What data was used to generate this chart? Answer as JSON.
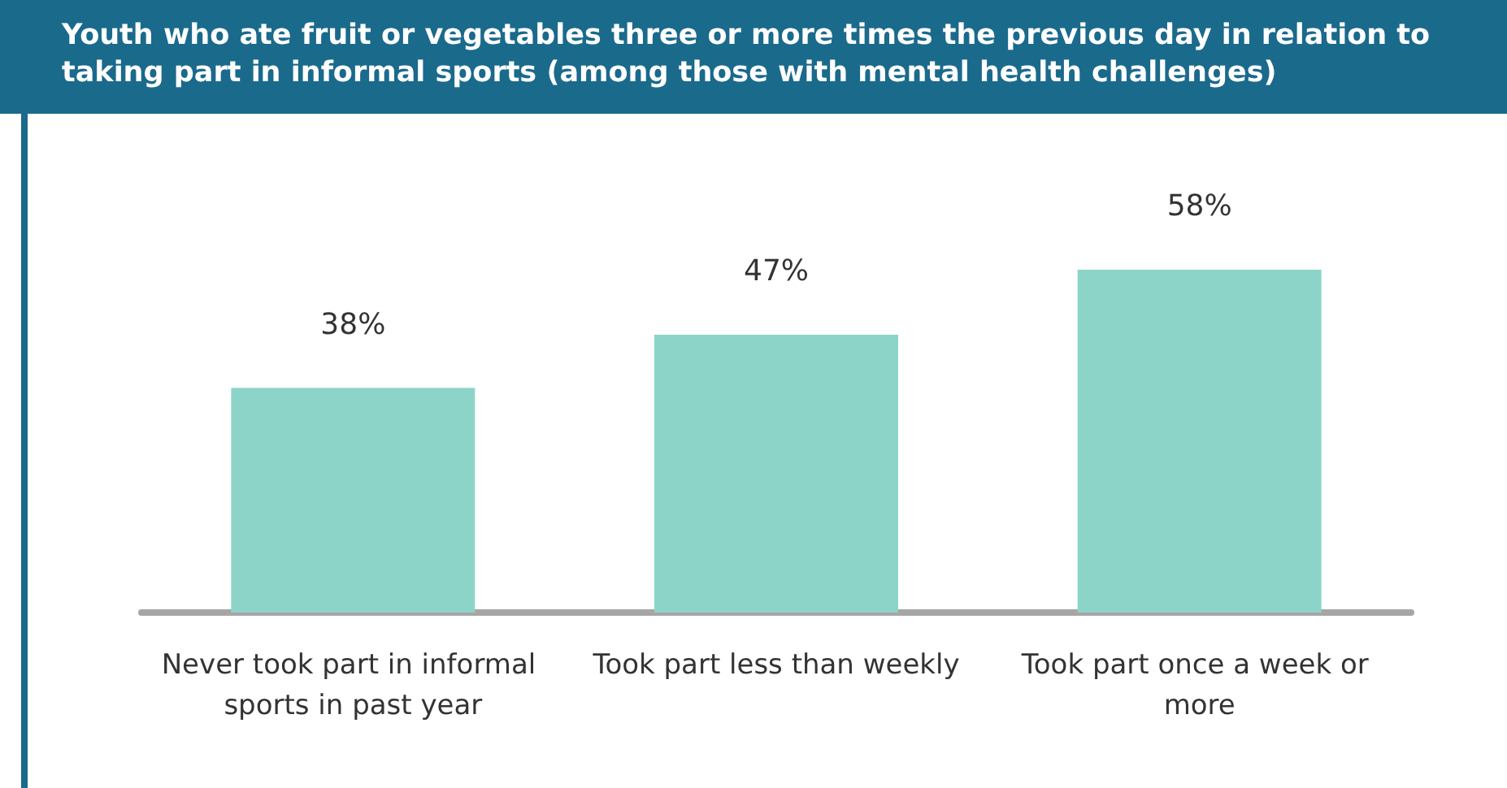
{
  "chart_data": {
    "type": "bar",
    "title": "Youth who ate fruit or vegetables three or more times the previous day in relation to taking part in informal sports (among those with mental health challenges)",
    "categories": [
      "Never took part in informal sports in past year",
      "Took part less than weekly",
      "Took part once a week or more"
    ],
    "values": [
      38,
      47,
      58
    ],
    "value_labels": [
      "38%",
      "47%",
      "58%"
    ],
    "color": "#8dd4c8"
  }
}
